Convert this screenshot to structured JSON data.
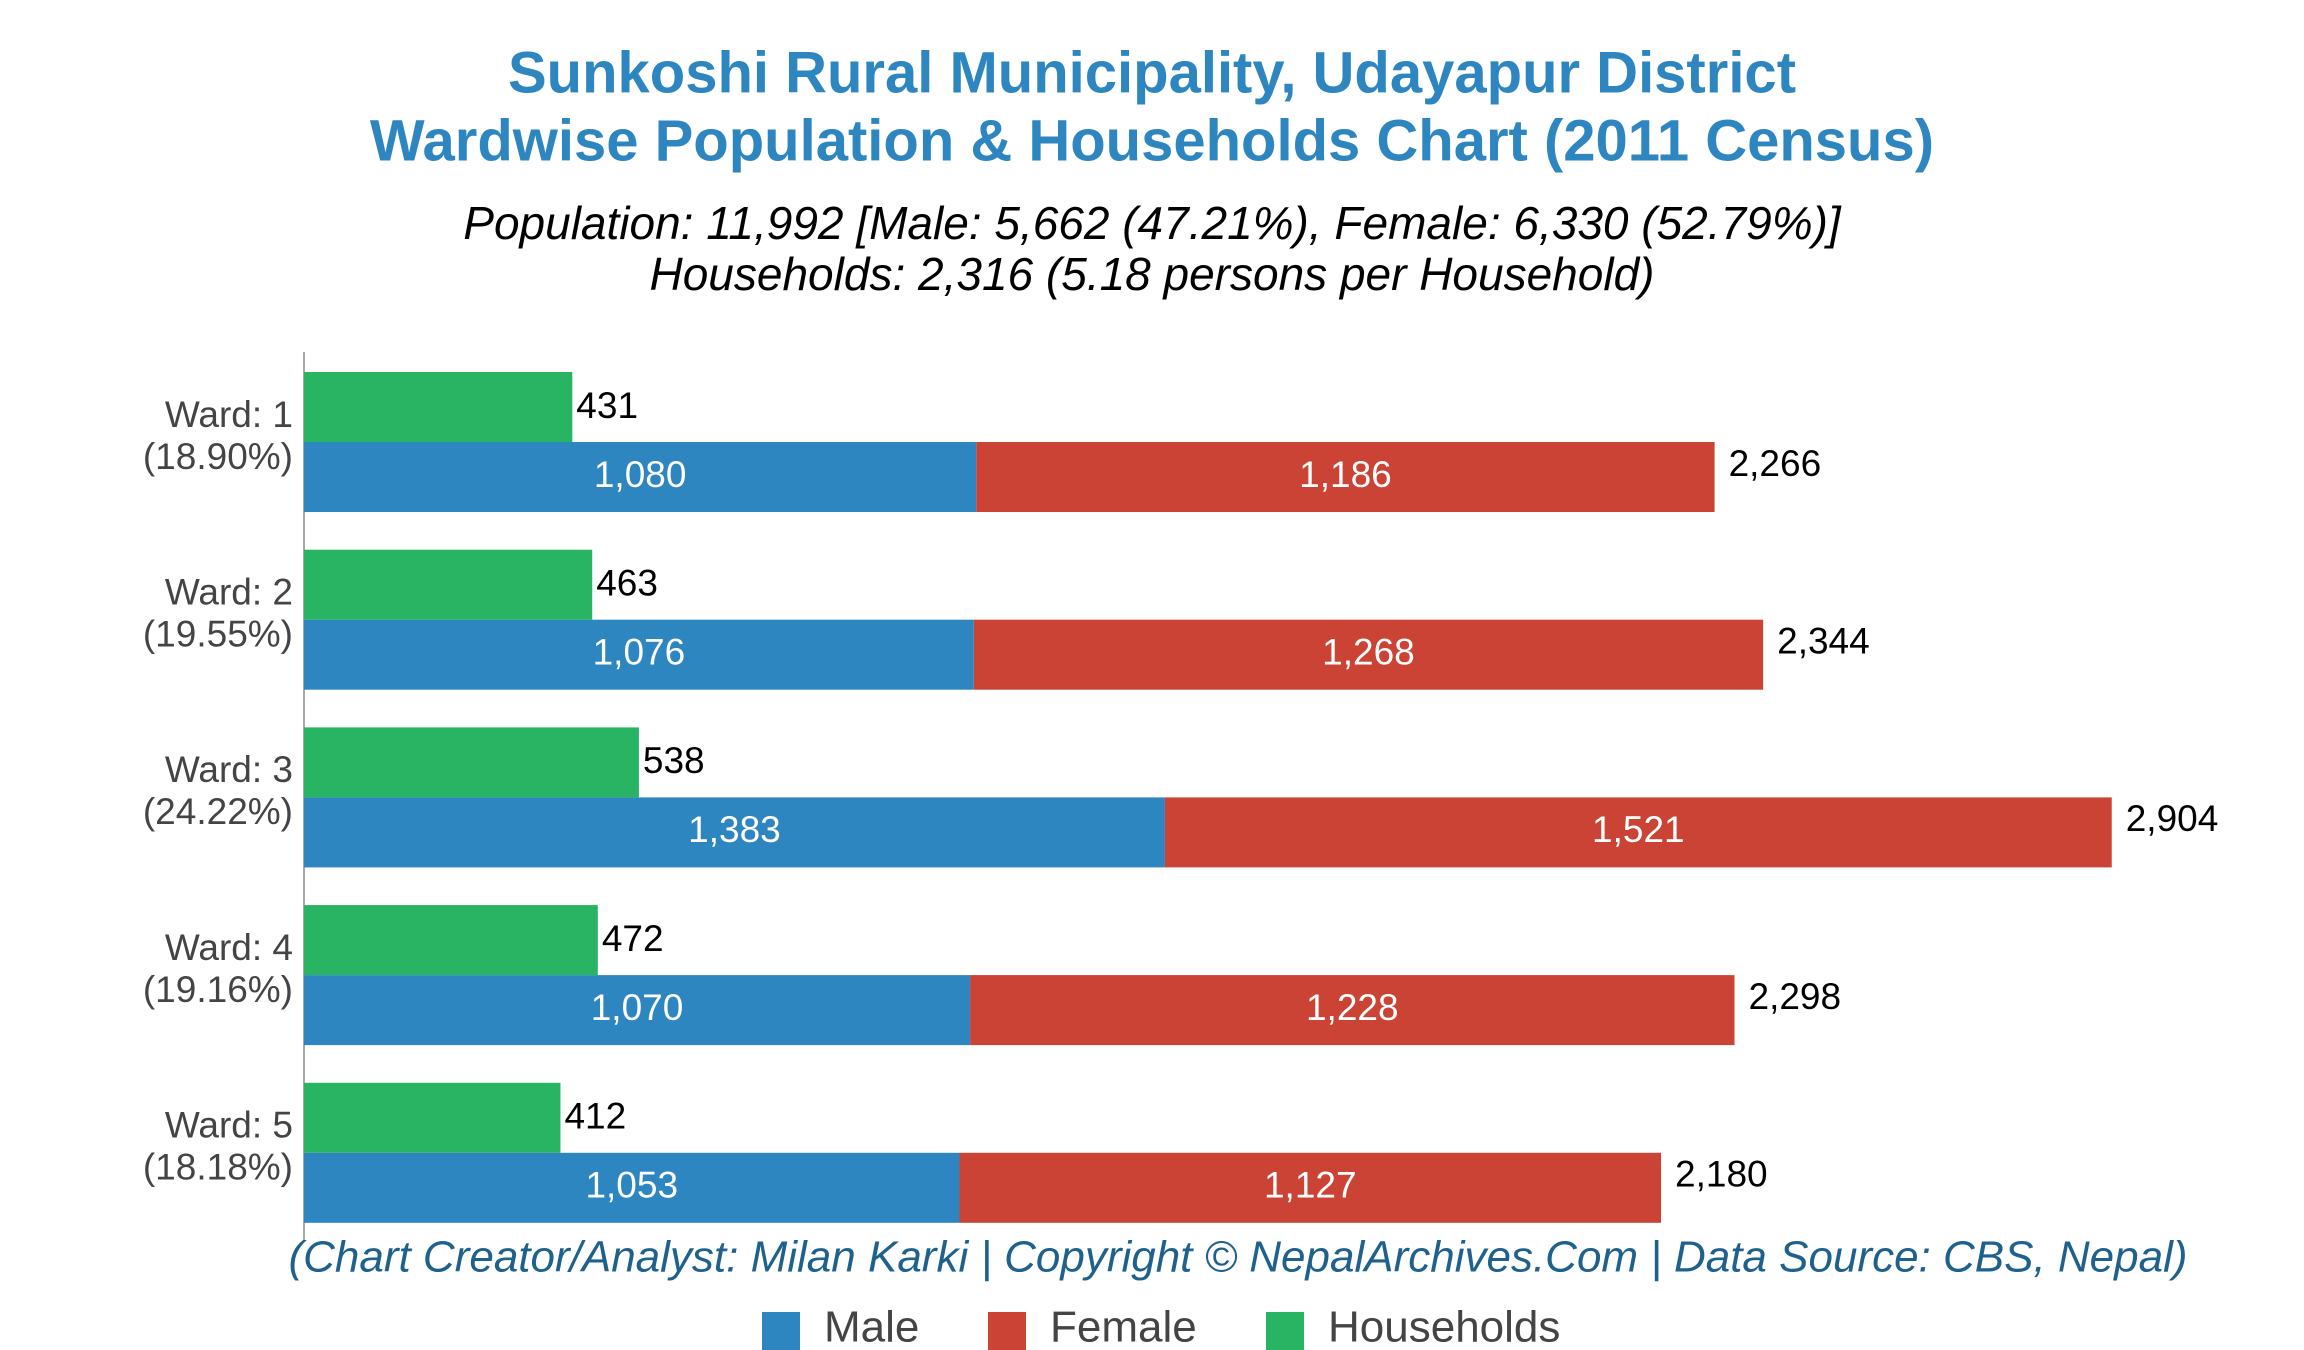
{
  "chart_data": {
    "type": "bar",
    "orientation": "horizontal",
    "title": [
      "Sunkoshi Rural Municipality, Udayapur District",
      "Wardwise Population & Households Chart (2011 Census)"
    ],
    "subtitle": [
      "Population: 11,992 [Male: 5,662 (47.21%), Female: 6,330 (52.79%)]",
      "Households: 2,316 (5.18 persons per Household)"
    ],
    "footer": "(Chart Creator/Analyst: Milan Karki | Copyright © NepalArchives.Com | Data Source: CBS, Nepal)",
    "categories": [
      "Ward: 1",
      "Ward: 2",
      "Ward: 3",
      "Ward: 4",
      "Ward: 5"
    ],
    "category_notes": [
      "(18.90%)",
      "(19.55%)",
      "(24.22%)",
      "(19.16%)",
      "(18.18%)"
    ],
    "series": [
      {
        "name": "Male",
        "color": "#2e86c1",
        "stack": true,
        "values": [
          1080,
          1076,
          1383,
          1070,
          1053
        ],
        "value_labels": [
          "1,080",
          "1,076",
          "1,383",
          "1,070",
          "1,053"
        ]
      },
      {
        "name": "Female",
        "color": "#cb4335",
        "stack": true,
        "values": [
          1186,
          1268,
          1521,
          1228,
          1127
        ],
        "value_labels": [
          "1,186",
          "1,268",
          "1,521",
          "1,228",
          "1,127"
        ]
      },
      {
        "name": "Households",
        "color": "#28b463",
        "stack": false,
        "values": [
          431,
          463,
          538,
          472,
          412
        ]
      }
    ],
    "totals": [
      2266,
      2344,
      2904,
      2298,
      2180
    ],
    "total_labels": [
      "2,266",
      "2,344",
      "2,904",
      "2,298",
      "2,180"
    ],
    "xlim": [
      0,
      3200
    ],
    "grid": false,
    "legend": "bottom"
  }
}
